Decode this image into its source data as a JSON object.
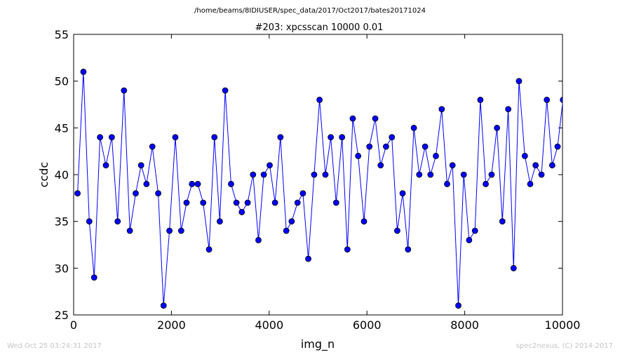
{
  "header": {
    "path": "/home/beams/8IDIUSER/spec_data/2017/Oct2017/bates20171024",
    "title": "#203: xpcsscan 10000 0.01"
  },
  "footer": {
    "timestamp": "Wed Oct 25 03:24:31 2017",
    "credit": "spec2nexus, (C) 2014-2017"
  },
  "colors": {
    "line": "#0000ff",
    "marker_fill": "#0000ff",
    "marker_edge": "#000000",
    "axes": "#000000",
    "footer_text": "#c4c4c4"
  },
  "chart_data": {
    "type": "line",
    "markers": "circle",
    "xlabel": "img_n",
    "ylabel": "ccdc",
    "xlim": [
      0,
      10000
    ],
    "ylim": [
      25,
      55
    ],
    "xticks": [
      0,
      2000,
      4000,
      6000,
      8000,
      10000
    ],
    "yticks": [
      25,
      30,
      35,
      40,
      45,
      50,
      55
    ],
    "grid": false,
    "series": [
      {
        "x": [
          80,
          200,
          320,
          420,
          540,
          660,
          780,
          900,
          1030,
          1150,
          1270,
          1380,
          1490,
          1610,
          1730,
          1840,
          1960,
          2080,
          2200,
          2310,
          2420,
          2540,
          2650,
          2770,
          2880,
          2990,
          3100,
          3220,
          3330,
          3440,
          3560,
          3670,
          3780,
          3890,
          4010,
          4120,
          4230,
          4350,
          4460,
          4580,
          4690,
          4800,
          4920,
          5030,
          5150,
          5260,
          5370,
          5490,
          5600,
          5710,
          5820,
          5940,
          6050,
          6170,
          6280,
          6390,
          6510,
          6620,
          6730,
          6840,
          6960,
          7070,
          7190,
          7300,
          7410,
          7530,
          7640,
          7750,
          7870,
          7980,
          8090,
          8210,
          8320,
          8430,
          8550,
          8660,
          8770,
          8890,
          9000,
          9110,
          9230,
          9340,
          9450,
          9570,
          9680,
          9790,
          9900,
          10010
        ],
        "y": [
          38,
          51,
          35,
          29,
          44,
          41,
          44,
          35,
          49,
          34,
          38,
          41,
          39,
          43,
          38,
          26,
          34,
          44,
          34,
          37,
          39,
          39,
          37,
          32,
          44,
          35,
          49,
          39,
          37,
          36,
          37,
          40,
          33,
          40,
          41,
          37,
          44,
          34,
          35,
          37,
          38,
          31,
          40,
          48,
          40,
          44,
          37,
          44,
          32,
          46,
          42,
          35,
          43,
          46,
          41,
          43,
          44,
          34,
          38,
          32,
          45,
          40,
          43,
          40,
          42,
          47,
          39,
          41,
          26,
          40,
          33,
          34,
          48,
          39,
          40,
          45,
          35,
          47,
          30,
          50,
          42,
          39,
          41,
          40,
          48,
          41,
          43,
          48
        ]
      }
    ]
  }
}
